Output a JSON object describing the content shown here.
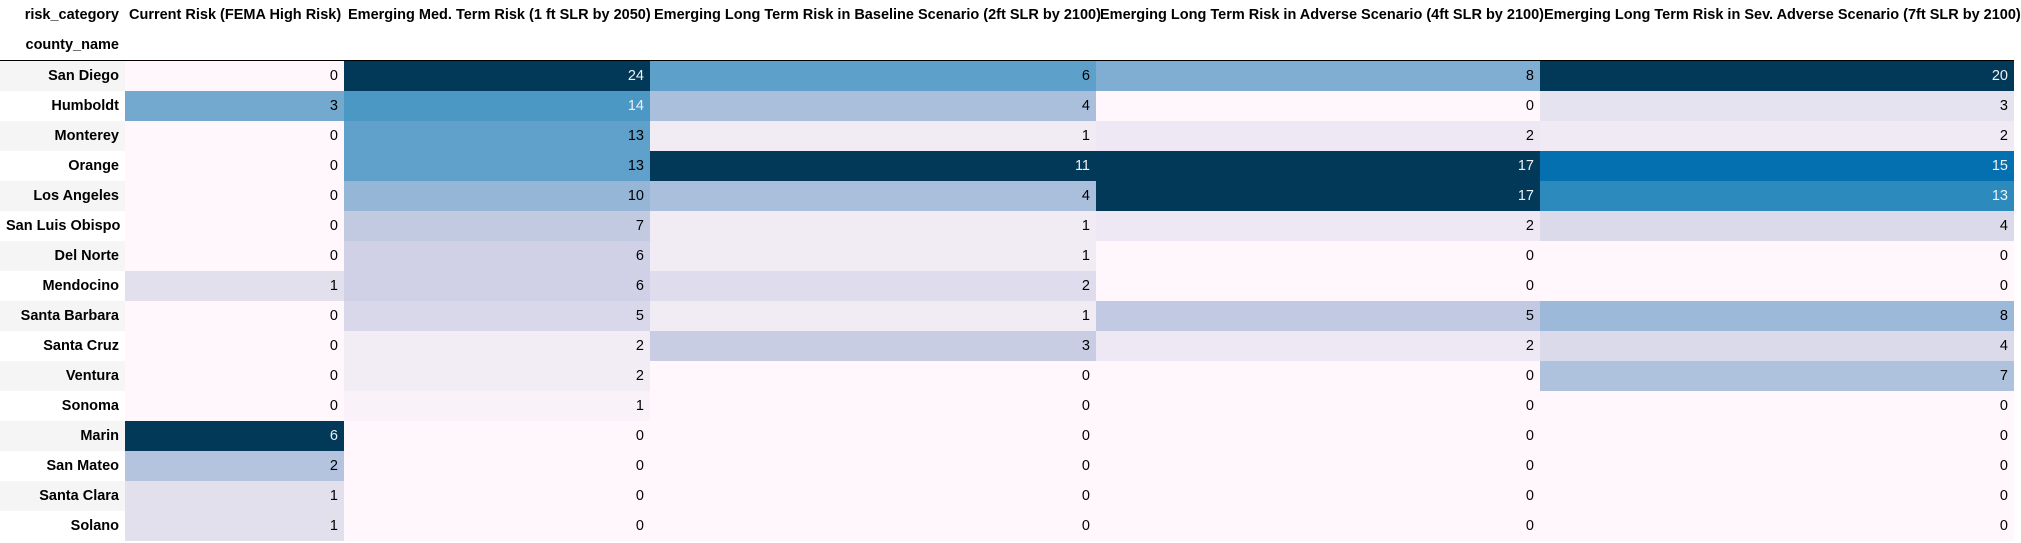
{
  "chart_data": {
    "type": "heatmap",
    "columns_name": "risk_category",
    "index_name": "county_name",
    "columns": [
      "Current Risk (FEMA High Risk)",
      "Emerging Med. Term Risk (1 ft SLR by 2050)",
      "Emerging Long Term Risk in Baseline Scenario (2ft SLR by 2100)",
      "Emerging Long Term Risk in Adverse Scenario (4ft SLR by 2100)",
      "Emerging Long Term Risk in Sev. Adverse Scenario (7ft SLR by 2100)"
    ],
    "rows": [
      {
        "label": "San Diego",
        "values": [
          0,
          24,
          6,
          8,
          20
        ]
      },
      {
        "label": "Humboldt",
        "values": [
          3,
          14,
          4,
          0,
          3
        ]
      },
      {
        "label": "Monterey",
        "values": [
          0,
          13,
          1,
          2,
          2
        ]
      },
      {
        "label": "Orange",
        "values": [
          0,
          13,
          11,
          17,
          15
        ]
      },
      {
        "label": "Los Angeles",
        "values": [
          0,
          10,
          4,
          17,
          13
        ]
      },
      {
        "label": "San Luis Obispo",
        "values": [
          0,
          7,
          1,
          2,
          4
        ]
      },
      {
        "label": "Del Norte",
        "values": [
          0,
          6,
          1,
          0,
          0
        ]
      },
      {
        "label": "Mendocino",
        "values": [
          1,
          6,
          2,
          0,
          0
        ]
      },
      {
        "label": "Santa Barbara",
        "values": [
          0,
          5,
          1,
          5,
          8
        ]
      },
      {
        "label": "Santa Cruz",
        "values": [
          0,
          2,
          3,
          2,
          4
        ]
      },
      {
        "label": "Ventura",
        "values": [
          0,
          2,
          0,
          0,
          7
        ]
      },
      {
        "label": "Sonoma",
        "values": [
          0,
          1,
          0,
          0,
          0
        ]
      },
      {
        "label": "Marin",
        "values": [
          6,
          0,
          0,
          0,
          0
        ]
      },
      {
        "label": "San Mateo",
        "values": [
          2,
          0,
          0,
          0,
          0
        ]
      },
      {
        "label": "Santa Clara",
        "values": [
          1,
          0,
          0,
          0,
          0
        ]
      },
      {
        "label": "Solano",
        "values": [
          1,
          0,
          0,
          0,
          0
        ]
      }
    ],
    "colormap": "PuBu",
    "color_scale": "per-column",
    "colormap_stops": [
      "#fff7fb",
      "#ece7f2",
      "#d0d1e6",
      "#a6bddb",
      "#74a9cf",
      "#3690c0",
      "#0570b0",
      "#045a8d",
      "#023858"
    ]
  }
}
